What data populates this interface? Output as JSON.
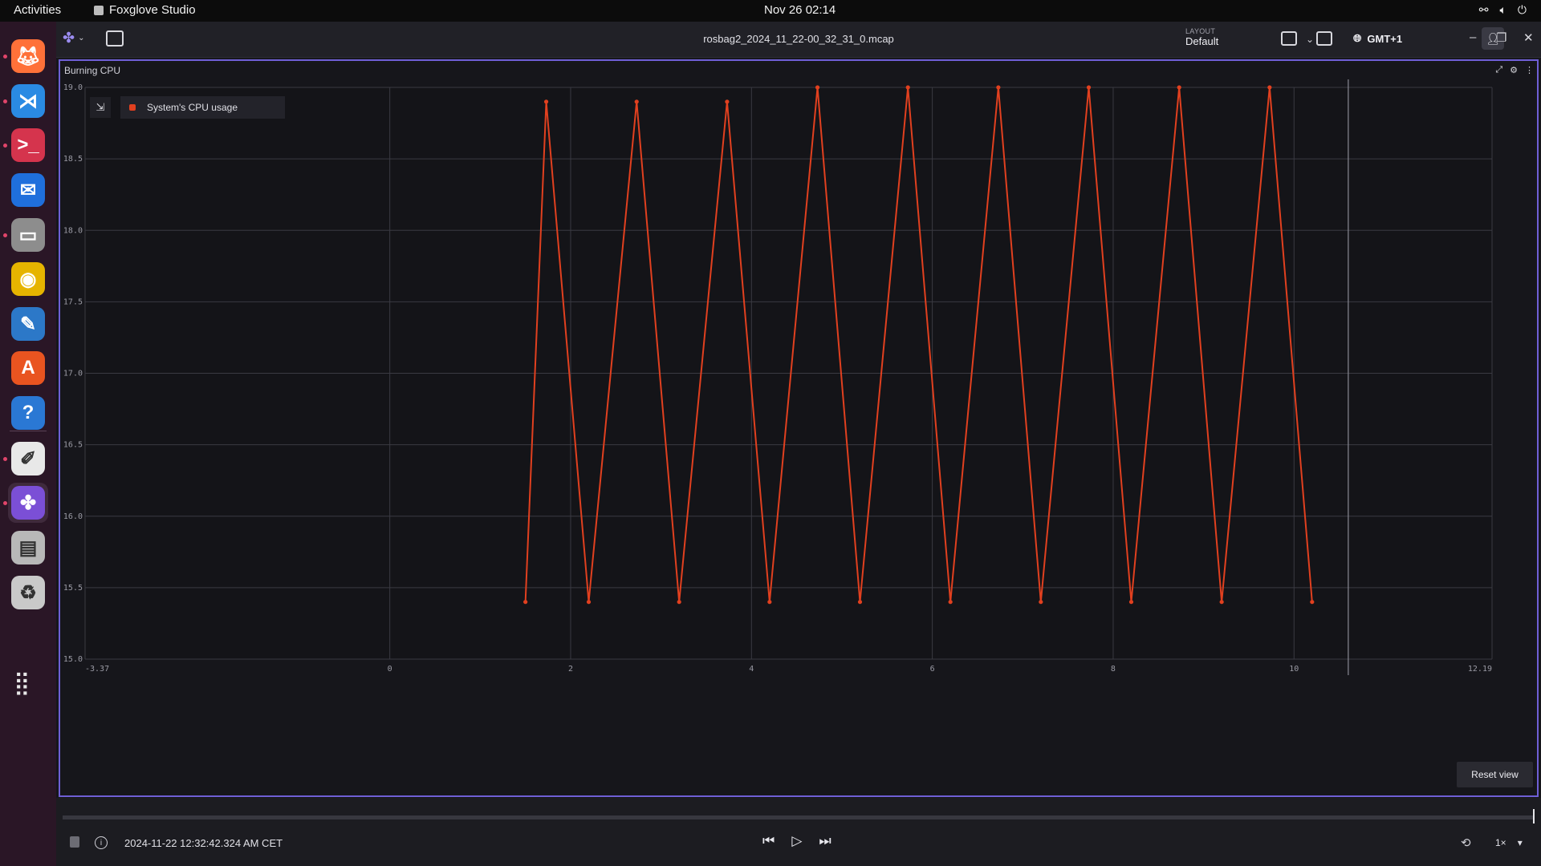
{
  "topbar": {
    "activities": "Activities",
    "app_name": "Foxglove Studio",
    "clock": "Nov 26  02:14"
  },
  "dock": {
    "apps": [
      {
        "name": "Firefox",
        "icon": "firefox-icon",
        "color": "#ff7139",
        "running": true
      },
      {
        "name": "Visual Studio Code",
        "icon": "vscode-icon",
        "color": "#2a8ae3",
        "running": true
      },
      {
        "name": "Terminal",
        "icon": "terminal-icon",
        "color": "#d5344d",
        "running": true
      },
      {
        "name": "Thunderbird",
        "icon": "thunderbird-icon",
        "color": "#1f6fdc",
        "running": false
      },
      {
        "name": "Files",
        "icon": "files-icon",
        "color": "#8d8d8d",
        "running": true
      },
      {
        "name": "Rhythmbox",
        "icon": "rhythmbox-icon",
        "color": "#e6b400",
        "running": false
      },
      {
        "name": "LibreOffice Writer",
        "icon": "writer-icon",
        "color": "#2c78c8",
        "running": false
      },
      {
        "name": "App Center",
        "icon": "app-center-icon",
        "color": "#e95420",
        "running": false
      },
      {
        "name": "Help",
        "icon": "help-icon",
        "color": "#2a78d4",
        "running": false
      },
      {
        "name": "Text Editor",
        "icon": "text-editor-icon",
        "color": "#e8e8e8",
        "running": true
      },
      {
        "name": "Foxglove Studio",
        "icon": "foxglove-icon",
        "color": "#7b4fd6",
        "running": true
      },
      {
        "name": "Disk",
        "icon": "disk-icon",
        "color": "#b8b8b8",
        "running": false
      },
      {
        "name": "Trash",
        "icon": "trash-icon",
        "color": "#c9c9c9",
        "running": false
      }
    ],
    "show_apps": "apps-grid-icon"
  },
  "toolbar": {
    "title": "rosbag2_2024_11_22-00_32_31_0.mcap",
    "layout_label": "LAYOUT",
    "layout_value": "Default",
    "timezone": "GMT+1"
  },
  "panel": {
    "title": "Burning CPU",
    "legend_label": "System's CPU usage",
    "reset_label": "Reset view"
  },
  "chart_data": {
    "type": "line",
    "series": [
      {
        "name": "System's CPU usage",
        "color": "#e1401f",
        "x": [
          1.5,
          1.73,
          2.2,
          2.73,
          3.2,
          3.73,
          4.2,
          4.73,
          5.2,
          5.73,
          6.2,
          6.73,
          7.2,
          7.73,
          8.2,
          8.73,
          9.2,
          9.73,
          10.2
        ],
        "y": [
          15.4,
          18.9,
          15.4,
          18.9,
          15.4,
          18.9,
          15.4,
          19.0,
          15.4,
          19.0,
          15.4,
          19.0,
          15.4,
          19.0,
          15.4,
          19.0,
          15.4,
          19.0,
          15.4
        ]
      }
    ],
    "xlim": [
      -3.37,
      12.19
    ],
    "ylim": [
      15.0,
      19.0
    ],
    "x_ticks": [
      {
        "v": -3.37,
        "label": "-3.37"
      },
      {
        "v": 0,
        "label": "0"
      },
      {
        "v": 2,
        "label": "2"
      },
      {
        "v": 4,
        "label": "4"
      },
      {
        "v": 6,
        "label": "6"
      },
      {
        "v": 8,
        "label": "8"
      },
      {
        "v": 10,
        "label": "10"
      },
      {
        "v": 12.19,
        "label": "12.19"
      }
    ],
    "y_ticks": [
      {
        "v": 19.0,
        "label": "19.0"
      },
      {
        "v": 18.5,
        "label": "18.5"
      },
      {
        "v": 18.0,
        "label": "18.0"
      },
      {
        "v": 17.5,
        "label": "17.5"
      },
      {
        "v": 17.0,
        "label": "17.0"
      },
      {
        "v": 16.5,
        "label": "16.5"
      },
      {
        "v": 16.0,
        "label": "16.0"
      },
      {
        "v": 15.5,
        "label": "15.5"
      },
      {
        "v": 15.0,
        "label": "15.0"
      }
    ],
    "playhead_x": 10.6,
    "grid": true
  },
  "playback": {
    "timestamp": "2024-11-22 12:32:42.324 AM CET",
    "speed": "1×"
  }
}
